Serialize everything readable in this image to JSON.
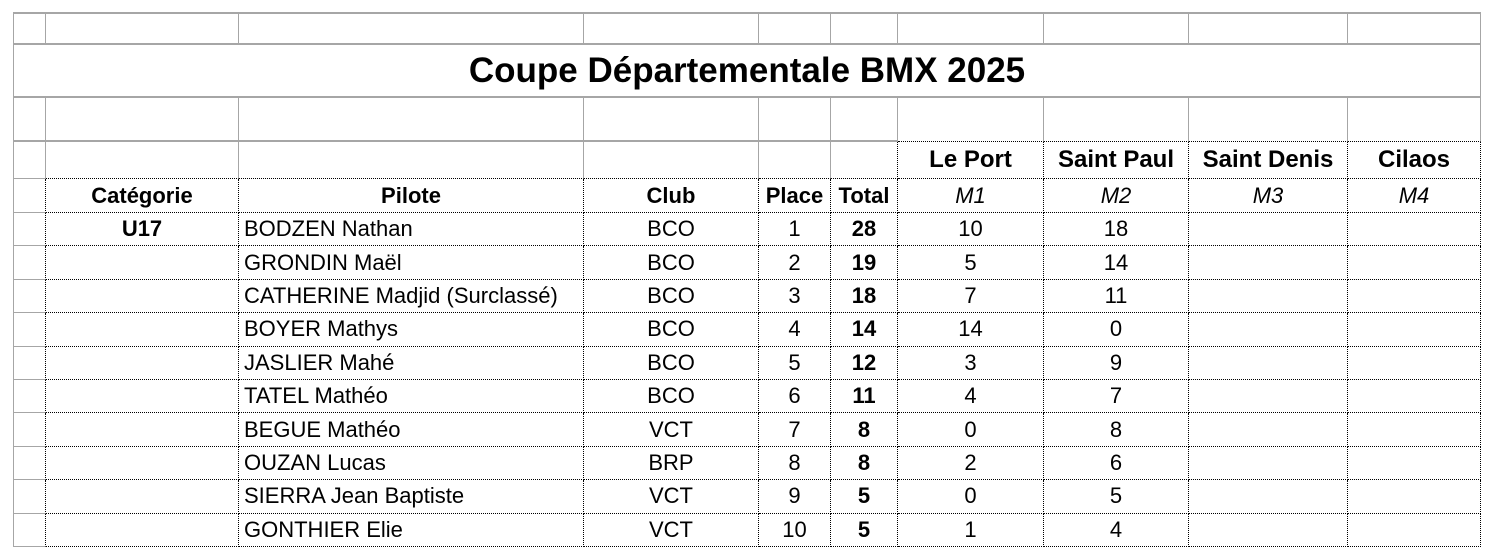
{
  "colors": {
    "gridline": "#a6a6a6",
    "table_border": "#000000",
    "text": "#000000",
    "background": "#ffffff"
  },
  "sheet": {
    "title": "Coupe Départementale BMX 2025",
    "venue_row": {
      "venues": [
        "Le Port",
        "Saint Paul",
        "Saint Denis",
        "Cilaos"
      ]
    },
    "header_row": {
      "columns": [
        "Catégorie",
        "Pilote",
        "Club",
        "Place",
        "Total",
        "M1",
        "M2",
        "M3",
        "M4"
      ]
    },
    "rows": [
      {
        "categorie": "U17",
        "pilote": "BODZEN Nathan",
        "club": "BCO",
        "place": "1",
        "total": "28",
        "m1": "10",
        "m2": "18",
        "m3": "",
        "m4": ""
      },
      {
        "categorie": "",
        "pilote": "GRONDIN Maël",
        "club": "BCO",
        "place": "2",
        "total": "19",
        "m1": "5",
        "m2": "14",
        "m3": "",
        "m4": ""
      },
      {
        "categorie": "",
        "pilote": "CATHERINE Madjid (Surclassé)",
        "club": "BCO",
        "place": "3",
        "total": "18",
        "m1": "7",
        "m2": "11",
        "m3": "",
        "m4": ""
      },
      {
        "categorie": "",
        "pilote": "BOYER Mathys",
        "club": "BCO",
        "place": "4",
        "total": "14",
        "m1": "14",
        "m2": "0",
        "m3": "",
        "m4": ""
      },
      {
        "categorie": "",
        "pilote": "JASLIER Mahé",
        "club": "BCO",
        "place": "5",
        "total": "12",
        "m1": "3",
        "m2": "9",
        "m3": "",
        "m4": ""
      },
      {
        "categorie": "",
        "pilote": "TATEL Mathéo",
        "club": "BCO",
        "place": "6",
        "total": "11",
        "m1": "4",
        "m2": "7",
        "m3": "",
        "m4": ""
      },
      {
        "categorie": "",
        "pilote": "BEGUE Mathéo",
        "club": "VCT",
        "place": "7",
        "total": "8",
        "m1": "0",
        "m2": "8",
        "m3": "",
        "m4": ""
      },
      {
        "categorie": "",
        "pilote": "OUZAN Lucas",
        "club": "BRP",
        "place": "8",
        "total": "8",
        "m1": "2",
        "m2": "6",
        "m3": "",
        "m4": ""
      },
      {
        "categorie": "",
        "pilote": "SIERRA Jean Baptiste",
        "club": "VCT",
        "place": "9",
        "total": "5",
        "m1": "0",
        "m2": "5",
        "m3": "",
        "m4": ""
      },
      {
        "categorie": "",
        "pilote": "GONTHIER Elie",
        "club": "VCT",
        "place": "10",
        "total": "5",
        "m1": "1",
        "m2": "4",
        "m3": "",
        "m4": ""
      }
    ]
  }
}
